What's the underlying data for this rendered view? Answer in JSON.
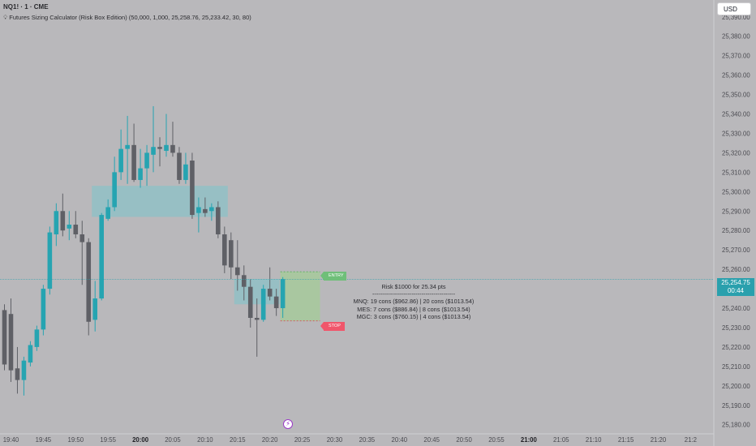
{
  "symbol": {
    "title": "NQ1! · 1 · CME",
    "indicator": "Futures Sizing Calculator (Risk Box Edition) (50,000, 1,000, 25,258.76, 25,233.42, 30, 80)",
    "indicator_icon": "lightbulb-icon"
  },
  "currency": "USD",
  "last_price": {
    "value": "25,254.75",
    "countdown": "00:44",
    "price": 25254.75
  },
  "price_axis": {
    "labels": [
      "25,390.00",
      "25,380.00",
      "25,370.00",
      "25,360.00",
      "25,350.00",
      "25,340.00",
      "25,330.00",
      "25,320.00",
      "25,310.00",
      "25,300.00",
      "25,290.00",
      "25,280.00",
      "25,270.00",
      "25,260.00",
      "25,250.00",
      "25,240.00",
      "25,230.00",
      "25,220.00",
      "25,210.00",
      "25,200.00",
      "25,190.00",
      "25,180.00"
    ],
    "min": 25177,
    "max": 25395
  },
  "time_axis": {
    "labels": [
      "19:40",
      "19:45",
      "19:50",
      "19:55",
      "20:00",
      "20:05",
      "20:10",
      "20:15",
      "20:20",
      "20:25",
      "20:30",
      "20:35",
      "20:40",
      "20:45",
      "20:50",
      "20:55",
      "21:00",
      "21:05",
      "21:10",
      "21:15",
      "21:20",
      "21:2"
    ],
    "bold": [
      "20:00",
      "21:00"
    ],
    "start_minute": 1180,
    "minutes_per_label": 5
  },
  "chart_data": {
    "type": "candlestick",
    "interval_minutes": 1,
    "up_color": "#26a4b1",
    "down_color": "#5f6066",
    "candles": [
      {
        "t": "19:39",
        "o": 25239,
        "h": 25242,
        "l": 25208,
        "c": 25211
      },
      {
        "t": "19:40",
        "o": 25237,
        "h": 25245,
        "l": 25202,
        "c": 25208
      },
      {
        "t": "19:41",
        "o": 25209,
        "h": 25220,
        "l": 25196,
        "c": 25203
      },
      {
        "t": "19:42",
        "o": 25203,
        "h": 25215,
        "l": 25195,
        "c": 25213
      },
      {
        "t": "19:43",
        "o": 25212,
        "h": 25223,
        "l": 25210,
        "c": 25221
      },
      {
        "t": "19:44",
        "o": 25220,
        "h": 25231,
        "l": 25218,
        "c": 25229
      },
      {
        "t": "19:45",
        "o": 25229,
        "h": 25252,
        "l": 25226,
        "c": 25250
      },
      {
        "t": "19:46",
        "o": 25250,
        "h": 25282,
        "l": 25247,
        "c": 25279
      },
      {
        "t": "19:47",
        "o": 25278,
        "h": 25294,
        "l": 25272,
        "c": 25290
      },
      {
        "t": "19:48",
        "o": 25290,
        "h": 25299,
        "l": 25277,
        "c": 25280
      },
      {
        "t": "19:49",
        "o": 25281,
        "h": 25290,
        "l": 25275,
        "c": 25283
      },
      {
        "t": "19:50",
        "o": 25283,
        "h": 25290,
        "l": 25276,
        "c": 25278
      },
      {
        "t": "19:51",
        "o": 25278,
        "h": 25285,
        "l": 25252,
        "c": 25274
      },
      {
        "t": "19:52",
        "o": 25274,
        "h": 25276,
        "l": 25226,
        "c": 25233
      },
      {
        "t": "19:53",
        "o": 25234,
        "h": 25254,
        "l": 25228,
        "c": 25245
      },
      {
        "t": "19:54",
        "o": 25245,
        "h": 25289,
        "l": 25244,
        "c": 25288
      },
      {
        "t": "19:55",
        "o": 25286,
        "h": 25296,
        "l": 25285,
        "c": 25292
      },
      {
        "t": "19:56",
        "o": 25292,
        "h": 25318,
        "l": 25290,
        "c": 25310
      },
      {
        "t": "19:57",
        "o": 25310,
        "h": 25332,
        "l": 25306,
        "c": 25322
      },
      {
        "t": "19:58",
        "o": 25322,
        "h": 25339,
        "l": 25304,
        "c": 25324
      },
      {
        "t": "19:59",
        "o": 25324,
        "h": 25335,
        "l": 25305,
        "c": 25306
      },
      {
        "t": "20:00",
        "o": 25306,
        "h": 25322,
        "l": 25302,
        "c": 25312
      },
      {
        "t": "20:01",
        "o": 25312,
        "h": 25324,
        "l": 25303,
        "c": 25320
      },
      {
        "t": "20:02",
        "o": 25319,
        "h": 25344,
        "l": 25310,
        "c": 25323
      },
      {
        "t": "20:03",
        "o": 25323,
        "h": 25328,
        "l": 25313,
        "c": 25322
      },
      {
        "t": "20:04",
        "o": 25321,
        "h": 25340,
        "l": 25318,
        "c": 25324
      },
      {
        "t": "20:05",
        "o": 25324,
        "h": 25336,
        "l": 25318,
        "c": 25320
      },
      {
        "t": "20:06",
        "o": 25320,
        "h": 25323,
        "l": 25304,
        "c": 25306
      },
      {
        "t": "20:07",
        "o": 25306,
        "h": 25320,
        "l": 25304,
        "c": 25314
      },
      {
        "t": "20:08",
        "o": 25316,
        "h": 25320,
        "l": 25286,
        "c": 25288
      },
      {
        "t": "20:09",
        "o": 25289,
        "h": 25297,
        "l": 25279,
        "c": 25292
      },
      {
        "t": "20:10",
        "o": 25291,
        "h": 25297,
        "l": 25287,
        "c": 25289
      },
      {
        "t": "20:11",
        "o": 25290,
        "h": 25294,
        "l": 25285,
        "c": 25292
      },
      {
        "t": "20:12",
        "o": 25292,
        "h": 25295,
        "l": 25276,
        "c": 25278
      },
      {
        "t": "20:13",
        "o": 25278,
        "h": 25282,
        "l": 25258,
        "c": 25262
      },
      {
        "t": "20:14",
        "o": 25275,
        "h": 25279,
        "l": 25255,
        "c": 25261
      },
      {
        "t": "20:15",
        "o": 25261,
        "h": 25275,
        "l": 25249,
        "c": 25257
      },
      {
        "t": "20:16",
        "o": 25257,
        "h": 25262,
        "l": 25244,
        "c": 25251
      },
      {
        "t": "20:17",
        "o": 25251,
        "h": 25255,
        "l": 25230,
        "c": 25235
      },
      {
        "t": "20:18",
        "o": 25235,
        "h": 25245,
        "l": 25215,
        "c": 25234
      },
      {
        "t": "20:19",
        "o": 25234,
        "h": 25252,
        "l": 25233,
        "c": 25250
      },
      {
        "t": "20:20",
        "o": 25250,
        "h": 25261,
        "l": 25244,
        "c": 25246
      },
      {
        "t": "20:21",
        "o": 25246,
        "h": 25250,
        "l": 25236,
        "c": 25240
      },
      {
        "t": "20:22",
        "o": 25240,
        "h": 25256,
        "l": 25235,
        "c": 25255
      }
    ],
    "zones": [
      {
        "from": "19:53",
        "to": "20:13",
        "high": 25303,
        "low": 25287
      },
      {
        "from": "20:15",
        "to": "20:21",
        "high": 25255,
        "low": 25242
      }
    ],
    "risk_box": {
      "from": "20:22",
      "to": "20:27",
      "entry": 25258.76,
      "stop": 25233.42,
      "fill_color": "#a3cd94",
      "entry_label": "ENTRY",
      "stop_label": "STOP"
    }
  },
  "risk_panel": {
    "line1": "Risk $1000 for 25.34 pts",
    "divider": "------------------------------------------",
    "line2": "MNQ: 19 cons ($962.86) | 20 cons ($1013.54)",
    "line3": "MES: 7 cons ($886.84) | 8 cons ($1013.54)",
    "line4": "MGC: 3 cons ($760.15) | 4 cons ($1013.54)"
  },
  "events": {
    "icon": "lightning-icon",
    "time": "20:20"
  }
}
